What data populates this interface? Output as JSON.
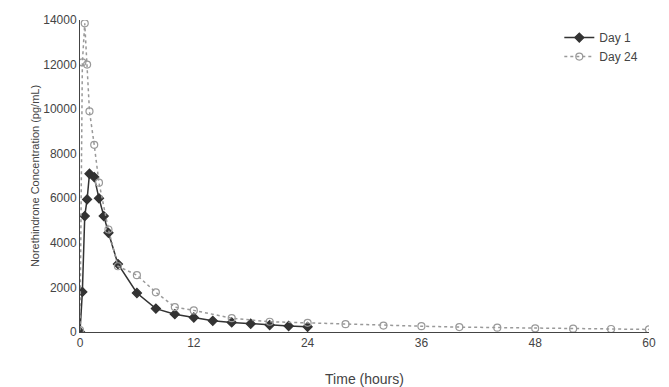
{
  "chart_data": {
    "type": "line",
    "xlabel": "Time (hours)",
    "ylabel": "Norethindrone Concentration (pg/mL)",
    "series": [
      {
        "name": "Day 1",
        "color": "#333333",
        "marker": "diamond",
        "line_style": "solid",
        "x": [
          0,
          0.25,
          0.5,
          0.75,
          1.0,
          1.5,
          2.0,
          2.5,
          3.0,
          4.0,
          6.0,
          8.0,
          10.0,
          12.0,
          14.0,
          16.0,
          18.0,
          20.0,
          22.0,
          24.0
        ],
        "values": [
          0,
          1800,
          5200,
          5950,
          7100,
          6950,
          6000,
          5200,
          4450,
          3050,
          1750,
          1050,
          800,
          650,
          500,
          430,
          370,
          310,
          270,
          230
        ]
      },
      {
        "name": "Day 24",
        "color": "#999999",
        "marker": "open circle",
        "line_style": "dotted",
        "x": [
          0,
          0.25,
          0.5,
          0.75,
          1.0,
          1.5,
          2.0,
          3.0,
          4.0,
          6.0,
          8.0,
          10.0,
          12.0,
          16.0,
          20.0,
          24.0,
          28.0,
          32.0,
          36.0,
          40.0,
          44.0,
          48.0,
          52.0,
          56.0,
          60.0
        ],
        "values": [
          80,
          12100,
          13850,
          12000,
          9900,
          8400,
          6700,
          4600,
          2950,
          2550,
          1780,
          1120,
          970,
          620,
          460,
          410,
          350,
          290,
          260,
          220,
          195,
          165,
          148,
          135,
          115
        ]
      }
    ],
    "xlim": [
      0,
      60
    ],
    "ylim": [
      0,
      14000
    ],
    "xticks": [
      0,
      12,
      24,
      36,
      48,
      60
    ],
    "yticks": [
      0,
      2000,
      4000,
      6000,
      8000,
      10000,
      12000,
      14000
    ],
    "grid": false,
    "legend": "upper right"
  }
}
